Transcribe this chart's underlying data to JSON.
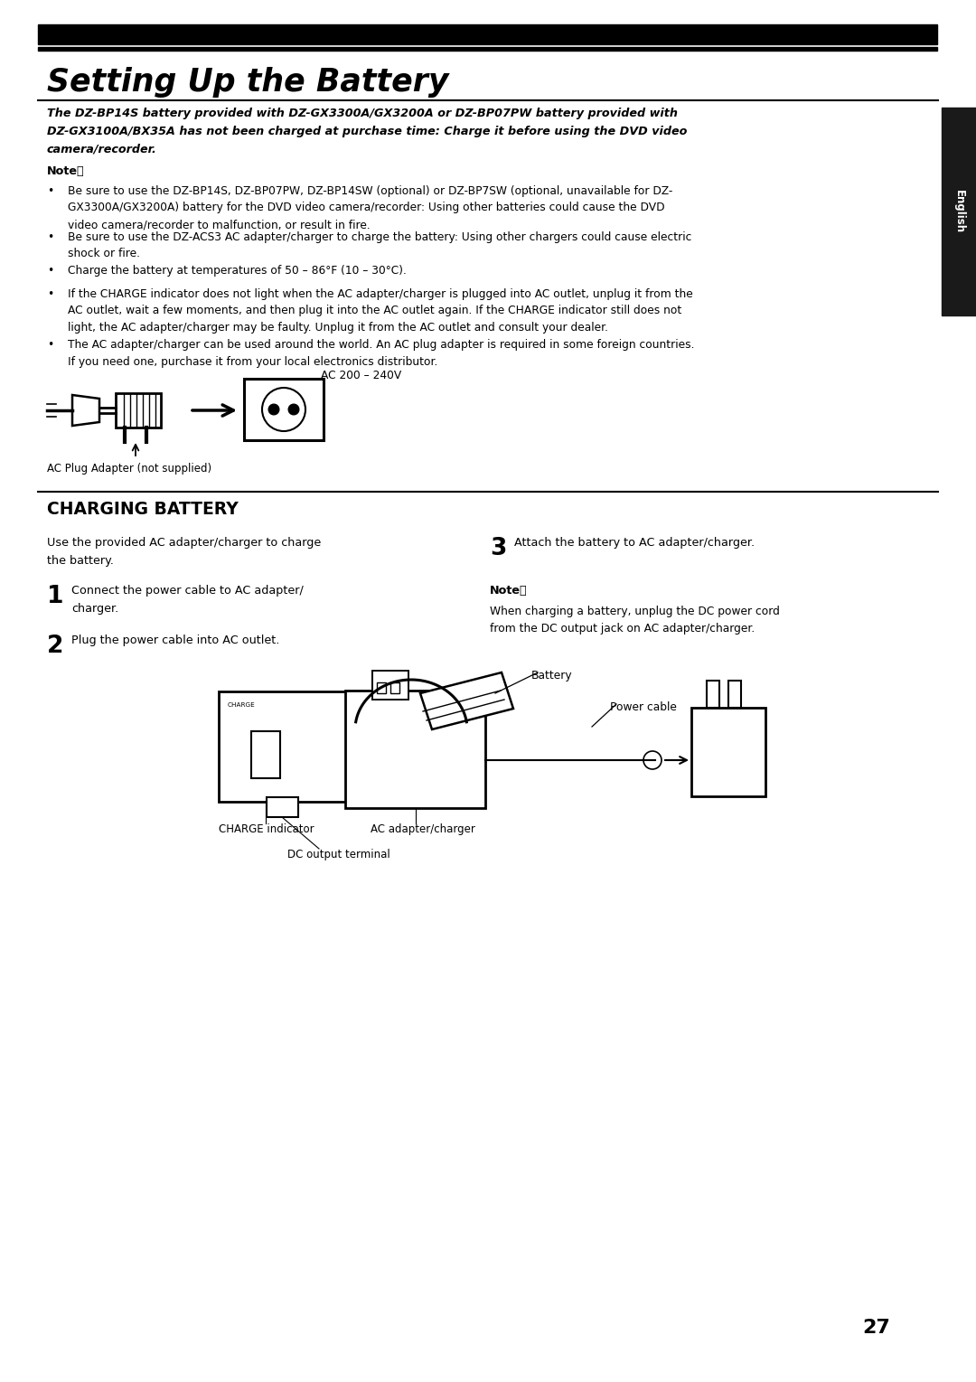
{
  "bg_color": "#ffffff",
  "page_width": 10.8,
  "page_height": 15.29,
  "title_text": "Setting Up the Battery",
  "subtitle_line1": "The DZ-BP14S battery provided with DZ-GX3300A/GX3200A or DZ-BP07PW battery provided with",
  "subtitle_line2": "DZ-GX3100A/BX35A has not been charged at purchase time: Charge it before using the DVD video",
  "subtitle_line3": "camera/recorder.",
  "note_label": "Note：",
  "bullet1_line1": "Be sure to use the DZ-BP14S, DZ-BP07PW, DZ-BP14SW (optional) or DZ-BP7SW (optional, unavailable for DZ-",
  "bullet1_line2": "GX3300A/GX3200A) battery for the DVD video camera/recorder: Using other batteries could cause the DVD",
  "bullet1_line3": "video camera/recorder to malfunction, or result in fire.",
  "bullet2_line1": "Be sure to use the DZ-ACS3 AC adapter/charger to charge the battery: Using other chargers could cause electric",
  "bullet2_line2": "shock or fire.",
  "bullet3": "Charge the battery at temperatures of 50 – 86°F (10 – 30°C).",
  "bullet4_line1": "If the CHARGE indicator does not light when the AC adapter/charger is plugged into AC outlet, unplug it from the",
  "bullet4_line2": "AC outlet, wait a few moments, and then plug it into the AC outlet again. If the CHARGE indicator still does not",
  "bullet4_line3": "light, the AC adapter/charger may be faulty. Unplug it from the AC outlet and consult your dealer.",
  "bullet5_line1": "The AC adapter/charger can be used around the world. An AC plug adapter is required in some foreign countries.",
  "bullet5_line2": "If you need one, purchase it from your local electronics distributor.",
  "ac_label": "AC 200 – 240V",
  "plug_caption": "AC Plug Adapter (not supplied)",
  "charging_title": "CHARGING BATTERY",
  "intro_line1": "Use the provided AC adapter/charger to charge",
  "intro_line2": "the battery.",
  "step1_line1": "Connect the power cable to AC adapter/",
  "step1_line2": "charger.",
  "step2_text": "Plug the power cable into AC outlet.",
  "step3_text": "Attach the battery to AC adapter/charger.",
  "note2_label": "Note：",
  "note2_line1": "When charging a battery, unplug the DC power cord",
  "note2_line2": "from the DC output jack on AC adapter/charger.",
  "battery_label": "Battery",
  "power_cable_label": "Power cable",
  "charge_indicator_label": "CHARGE indicator",
  "ac_adapter_label": "AC adapter/charger",
  "dc_output_label": "DC output terminal",
  "page_number": "27",
  "english_tab": "English",
  "text_color": "#000000",
  "tab_bg": "#1a1a1a"
}
